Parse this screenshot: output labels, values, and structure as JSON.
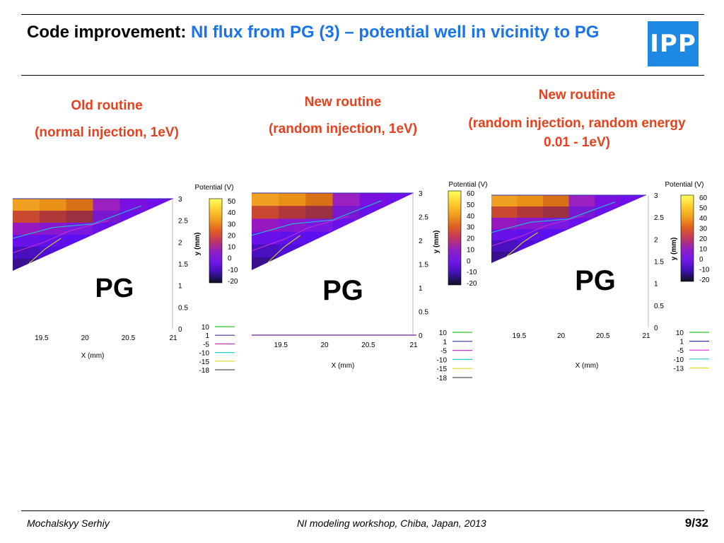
{
  "slide": {
    "title_lead": "Code improvement:",
    "title_rest": "NI flux from PG (3) – potential well in vicinity to PG",
    "logo_text": "IPP",
    "accent_color": "#e8401c",
    "title_color": "#1a73e8"
  },
  "captions": [
    {
      "line1": "Old routine",
      "line2": "(normal injection, 1eV)"
    },
    {
      "line1": "New routine",
      "line2": "(random injection, 1eV)"
    },
    {
      "line1": "New routine",
      "line2": "(random injection, random energy 0.01 - 1eV)"
    }
  ],
  "chart_data": [
    {
      "type": "heatmap",
      "x_ticks": [
        "19.5",
        "20",
        "20.5",
        "21"
      ],
      "y_ticks": [
        "3",
        "2.5",
        "2",
        "1.5",
        "1",
        "0.5",
        "0"
      ],
      "xlabel": "X (mm)",
      "ylabel": "y (mm)",
      "colorbar_title": "Potential (V)",
      "colorbar_ticks": [
        "50",
        "40",
        "30",
        "20",
        "10",
        "0",
        "-10",
        "-20"
      ],
      "annotation": "PG",
      "contour_legend": [
        {
          "label": "10",
          "color": "#22cc22"
        },
        {
          "label": "1",
          "color": "#3333aa"
        },
        {
          "label": "-5",
          "color": "#cc33cc"
        },
        {
          "label": "-10",
          "color": "#22cccc"
        },
        {
          "label": "-15",
          "color": "#dddd22"
        },
        {
          "label": "-18",
          "color": "#555555"
        }
      ]
    },
    {
      "type": "heatmap",
      "x_ticks": [
        "19.5",
        "20",
        "20.5",
        "21"
      ],
      "y_ticks": [
        "3",
        "2.5",
        "2",
        "1.5",
        "1",
        "0.5",
        "0"
      ],
      "xlabel": "X (mm)",
      "ylabel": "y (mm)",
      "colorbar_title": "Potential (V)",
      "colorbar_ticks": [
        "60",
        "50",
        "40",
        "30",
        "20",
        "10",
        "0",
        "-10",
        "-20"
      ],
      "annotation": "PG",
      "contour_legend": [
        {
          "label": "10",
          "color": "#22cc22"
        },
        {
          "label": "1",
          "color": "#3333aa"
        },
        {
          "label": "-5",
          "color": "#cc33cc"
        },
        {
          "label": "-10",
          "color": "#22cccc"
        },
        {
          "label": "-15",
          "color": "#dddd22"
        },
        {
          "label": "-18",
          "color": "#555555"
        }
      ]
    },
    {
      "type": "heatmap",
      "x_ticks": [
        "19.5",
        "20",
        "20.5",
        "21"
      ],
      "y_ticks": [
        "3",
        "2.5",
        "2",
        "1.5",
        "1",
        "0.5",
        "0"
      ],
      "xlabel": "X (mm)",
      "ylabel": "y (mm)",
      "colorbar_title": "Potential (V)",
      "colorbar_ticks": [
        "60",
        "50",
        "40",
        "30",
        "20",
        "10",
        "0",
        "-10",
        "-20"
      ],
      "annotation": "PG",
      "contour_legend": [
        {
          "label": "10",
          "color": "#22cc22"
        },
        {
          "label": "1",
          "color": "#3333aa"
        },
        {
          "label": "-5",
          "color": "#cc33cc"
        },
        {
          "label": "-10",
          "color": "#22cccc"
        },
        {
          "label": "-13",
          "color": "#dddd22"
        }
      ]
    }
  ],
  "footer": {
    "author": "Mochalskyy Serhiy",
    "event": "NI modeling workshop,  Chiba, Japan, 2013",
    "page": "9/32"
  }
}
